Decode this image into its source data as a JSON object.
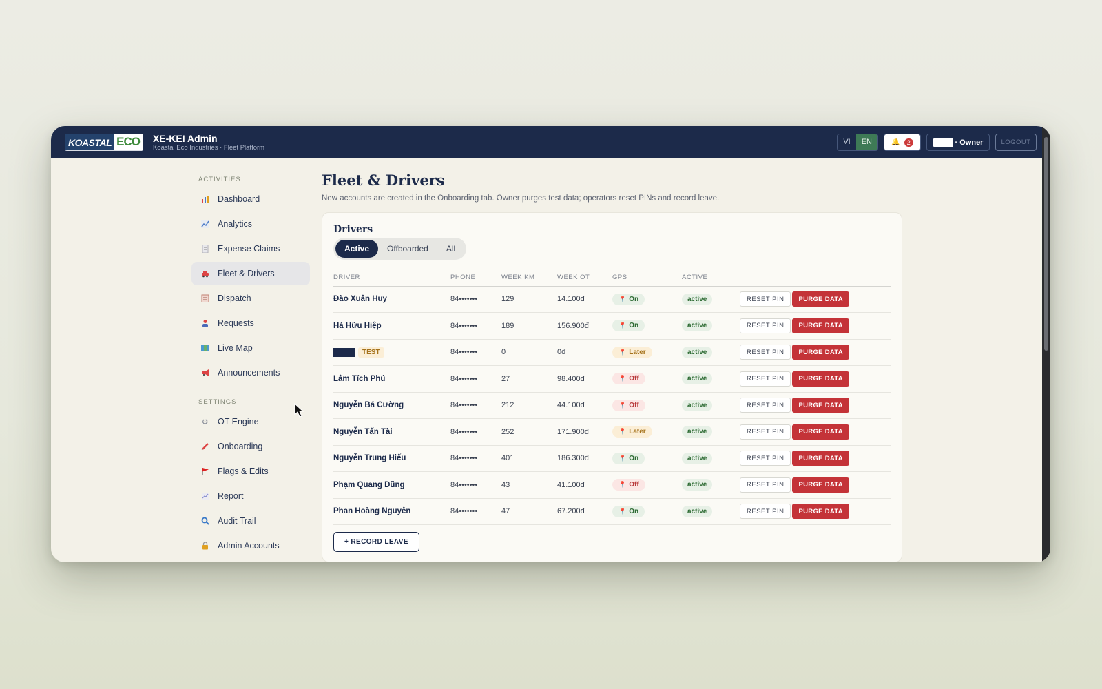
{
  "app": {
    "title": "XE-KEI Admin",
    "subtitle": "Koastal Eco Industries · Fleet Platform",
    "logo_left": "KOASTAL",
    "logo_right": "ECO"
  },
  "topbar": {
    "lang_vi": "VI",
    "lang_en": "EN",
    "lang_selected": "EN",
    "notifications_count": "2",
    "owner_label": "· Owner",
    "logout_label": "LOGOUT"
  },
  "sidebar": {
    "activities_label": "ACTIVITIES",
    "activities": [
      {
        "label": "Dashboard",
        "icon": "bar-chart-icon"
      },
      {
        "label": "Analytics",
        "icon": "line-chart-icon"
      },
      {
        "label": "Expense Claims",
        "icon": "receipt-icon"
      },
      {
        "label": "Fleet & Drivers",
        "icon": "car-icon"
      },
      {
        "label": "Dispatch",
        "icon": "clipboard-icon"
      },
      {
        "label": "Requests",
        "icon": "person-icon"
      },
      {
        "label": "Live Map",
        "icon": "map-icon"
      },
      {
        "label": "Announcements",
        "icon": "megaphone-icon"
      }
    ],
    "settings_label": "SETTINGS",
    "settings": [
      {
        "label": "OT Engine",
        "icon": "gear-icon"
      },
      {
        "label": "Onboarding",
        "icon": "syringe-icon"
      },
      {
        "label": "Flags & Edits",
        "icon": "flag-icon"
      },
      {
        "label": "Report",
        "icon": "chart-doc-icon"
      },
      {
        "label": "Audit Trail",
        "icon": "magnifier-icon"
      },
      {
        "label": "Admin Accounts",
        "icon": "lock-icon"
      }
    ],
    "active_item": "Fleet & Drivers"
  },
  "main": {
    "title": "Fleet & Drivers",
    "description": "New accounts are created in the Onboarding tab. Owner purges test data; operators reset PINs and record leave.",
    "card_title": "Drivers",
    "tabs": [
      "Active",
      "Offboarded",
      "All"
    ],
    "active_tab": "Active",
    "columns": [
      "DRIVER",
      "PHONE",
      "WEEK KM",
      "WEEK OT",
      "GPS",
      "ACTIVE",
      ""
    ],
    "rows": [
      {
        "driver": "Đào Xuân Huy",
        "phone": "84•••••••",
        "km": "129",
        "ot": "14.100đ",
        "gps": "On",
        "active": "active"
      },
      {
        "driver": "Hà Hữu Hiệp",
        "phone": "84•••••••",
        "km": "189",
        "ot": "156.900đ",
        "gps": "On",
        "active": "active"
      },
      {
        "driver": "",
        "tag": "TEST",
        "phone": "84•••••••",
        "km": "0",
        "ot": "0đ",
        "gps": "Later",
        "active": "active"
      },
      {
        "driver": "Lâm Tích Phú",
        "phone": "84•••••••",
        "km": "27",
        "ot": "98.400đ",
        "gps": "Off",
        "active": "active"
      },
      {
        "driver": "Nguyễn Bá Cường",
        "phone": "84•••••••",
        "km": "212",
        "ot": "44.100đ",
        "gps": "Off",
        "active": "active"
      },
      {
        "driver": "Nguyễn Tấn Tài",
        "phone": "84•••••••",
        "km": "252",
        "ot": "171.900đ",
        "gps": "Later",
        "active": "active"
      },
      {
        "driver": "Nguyễn Trung Hiếu",
        "phone": "84•••••••",
        "km": "401",
        "ot": "186.300đ",
        "gps": "On",
        "active": "active"
      },
      {
        "driver": "Phạm Quang Dũng",
        "phone": "84•••••••",
        "km": "43",
        "ot": "41.100đ",
        "gps": "Off",
        "active": "active"
      },
      {
        "driver": "Phan Hoàng Nguyên",
        "phone": "84•••••••",
        "km": "47",
        "ot": "67.200đ",
        "gps": "On",
        "active": "active"
      }
    ],
    "reset_pin_label": "RESET PIN",
    "purge_label": "PURGE DATA",
    "record_leave_label": "+ RECORD LEAVE"
  },
  "colors": {
    "navy": "#1c2a4a",
    "purge_red": "#c43338",
    "gps_on": "#2c6a32",
    "gps_off": "#b8383a",
    "gps_later": "#a5721b",
    "lang_active": "#3e7a56"
  }
}
